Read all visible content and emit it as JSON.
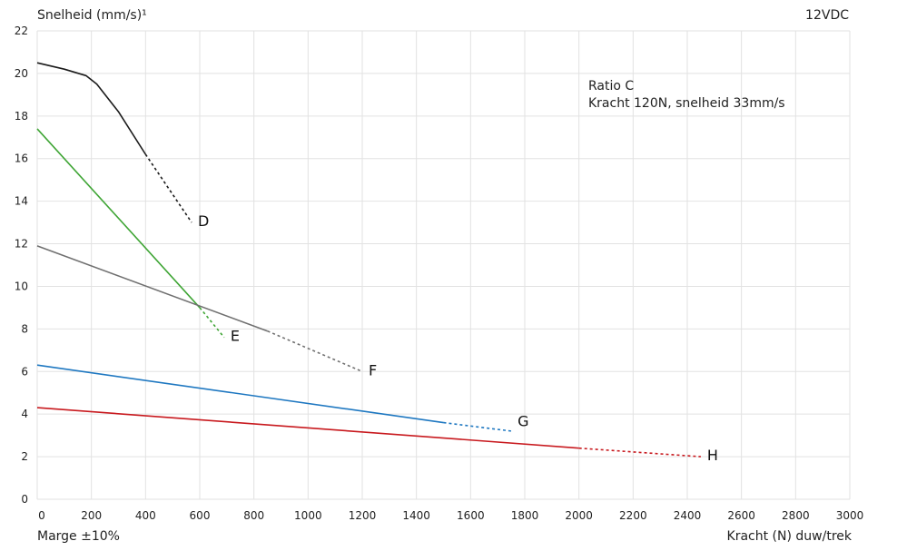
{
  "chart_data": {
    "type": "line",
    "ylabel": "Snelheid (mm/s)¹",
    "xlabel": "Kracht (N) duw/trek",
    "top_right_label": "12VDC",
    "footnote": "Marge ±10%",
    "annotation": [
      "Ratio C",
      "Kracht 120N, snelheid 33mm/s"
    ],
    "xlim": [
      0,
      3000
    ],
    "ylim": [
      0,
      22
    ],
    "xticks": [
      0,
      200,
      400,
      600,
      800,
      1000,
      1200,
      1400,
      1600,
      1800,
      2000,
      2200,
      2400,
      2600,
      2800,
      3000
    ],
    "yticks": [
      0,
      2,
      4,
      6,
      8,
      10,
      12,
      14,
      16,
      18,
      20,
      22
    ],
    "grid": true,
    "series": [
      {
        "name": "D",
        "color": "#1a1a1a",
        "solid": [
          [
            0,
            20.5
          ],
          [
            100,
            20.2
          ],
          [
            180,
            19.9
          ],
          [
            220,
            19.5
          ],
          [
            300,
            18.2
          ],
          [
            400,
            16.2
          ]
        ],
        "dashed": [
          [
            400,
            16.2
          ],
          [
            570,
            13.0
          ]
        ],
        "label_at": [
          580,
          13.0
        ]
      },
      {
        "name": "E",
        "color": "#3fa535",
        "solid": [
          [
            0,
            17.4
          ],
          [
            600,
            9.0
          ]
        ],
        "dashed": [
          [
            600,
            9.0
          ],
          [
            690,
            7.6
          ]
        ],
        "label_at": [
          700,
          7.6
        ]
      },
      {
        "name": "F",
        "color": "#707070",
        "solid": [
          [
            0,
            11.9
          ],
          [
            850,
            7.9
          ]
        ],
        "dashed": [
          [
            850,
            7.9
          ],
          [
            1200,
            6.0
          ]
        ],
        "label_at": [
          1210,
          6.0
        ]
      },
      {
        "name": "G",
        "color": "#1f78c1",
        "solid": [
          [
            0,
            6.3
          ],
          [
            1500,
            3.6
          ]
        ],
        "dashed": [
          [
            1500,
            3.6
          ],
          [
            1750,
            3.2
          ]
        ],
        "label_at": [
          1760,
          3.6
        ]
      },
      {
        "name": "H",
        "color": "#c8191e",
        "solid": [
          [
            0,
            4.3
          ],
          [
            2000,
            2.4
          ]
        ],
        "dashed": [
          [
            2000,
            2.4
          ],
          [
            2450,
            2.0
          ]
        ],
        "label_at": [
          2460,
          2.0
        ]
      }
    ]
  }
}
